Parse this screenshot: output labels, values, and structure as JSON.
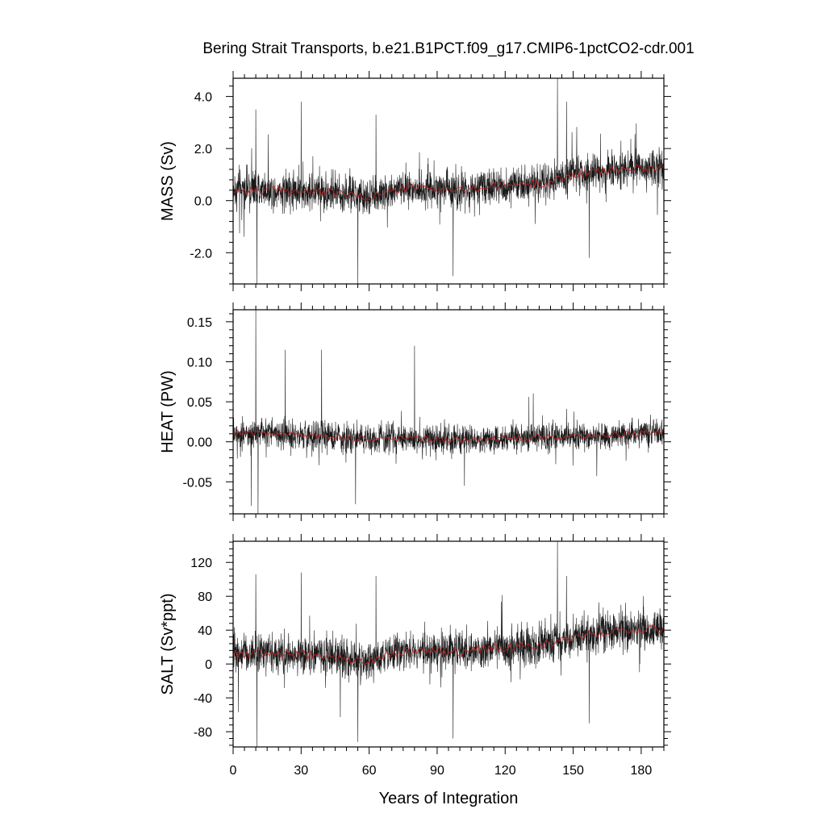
{
  "title": "Bering Strait Transports, b.e21.B1PCT.f09_g17.CMIP6-1pctCO2-cdr.001",
  "xlabel": "Years of Integration",
  "colors": {
    "monthly": "#000000",
    "annual_mean": "#cc2222",
    "axes": "#000000",
    "background": "#ffffff"
  },
  "chart_data": [
    {
      "type": "line",
      "ylabel": "MASS (Sv)",
      "xlim": [
        0,
        190
      ],
      "ylim": [
        -3.2,
        4.7
      ],
      "x_ticks": [
        0,
        30,
        60,
        90,
        120,
        150,
        180
      ],
      "y_ticks": [
        -2.0,
        0.0,
        2.0,
        4.0
      ],
      "y_tick_labels": [
        "-2.0",
        "0.0",
        "2.0",
        "4.0"
      ],
      "x_tick_labels_shown": false,
      "grid": false,
      "series": [
        {
          "style": "monthly",
          "trend": [
            [
              0,
              0.4
            ],
            [
              20,
              0.4
            ],
            [
              45,
              0.3
            ],
            [
              58,
              0.1
            ],
            [
              72,
              0.4
            ],
            [
              80,
              0.5
            ],
            [
              100,
              0.4
            ],
            [
              120,
              0.6
            ],
            [
              140,
              0.7
            ],
            [
              150,
              1.0
            ],
            [
              170,
              1.2
            ],
            [
              190,
              1.3
            ]
          ],
          "spread": 0.75
        },
        {
          "style": "annual_mean",
          "trend": [
            [
              0,
              0.4
            ],
            [
              20,
              0.4
            ],
            [
              45,
              0.3
            ],
            [
              58,
              0.1
            ],
            [
              72,
              0.4
            ],
            [
              80,
              0.5
            ],
            [
              100,
              0.4
            ],
            [
              120,
              0.6
            ],
            [
              140,
              0.7
            ],
            [
              150,
              1.0
            ],
            [
              170,
              1.2
            ],
            [
              190,
              1.3
            ]
          ]
        }
      ],
      "extremes": [
        [
          10,
          3.5
        ],
        [
          10.5,
          -3.2
        ],
        [
          30,
          3.8
        ],
        [
          63,
          3.3
        ],
        [
          55,
          -3.2
        ],
        [
          97,
          -2.9
        ],
        [
          143,
          4.7
        ],
        [
          147,
          3.8
        ],
        [
          157,
          -2.2
        ],
        [
          171,
          2.3
        ]
      ]
    },
    {
      "type": "line",
      "ylabel": "HEAT (PW)",
      "xlim": [
        0,
        190
      ],
      "ylim": [
        -0.09,
        0.165
      ],
      "x_ticks": [
        0,
        30,
        60,
        90,
        120,
        150,
        180
      ],
      "y_ticks": [
        -0.05,
        0.0,
        0.05,
        0.1,
        0.15
      ],
      "y_tick_labels": [
        "-0.05",
        "0.00",
        "0.05",
        "0.10",
        "0.15"
      ],
      "x_tick_labels_shown": false,
      "grid": false,
      "series": [
        {
          "style": "monthly",
          "trend": [
            [
              0,
              0.012
            ],
            [
              20,
              0.01
            ],
            [
              45,
              0.006
            ],
            [
              60,
              0.003
            ],
            [
              80,
              0.004
            ],
            [
              100,
              0.002
            ],
            [
              120,
              0.004
            ],
            [
              140,
              0.006
            ],
            [
              160,
              0.008
            ],
            [
              175,
              0.01
            ],
            [
              190,
              0.012
            ]
          ],
          "spread": 0.018
        },
        {
          "style": "annual_mean",
          "trend": [
            [
              0,
              0.012
            ],
            [
              20,
              0.01
            ],
            [
              45,
              0.006
            ],
            [
              60,
              0.003
            ],
            [
              80,
              0.004
            ],
            [
              100,
              0.002
            ],
            [
              120,
              0.004
            ],
            [
              140,
              0.006
            ],
            [
              160,
              0.008
            ],
            [
              175,
              0.01
            ],
            [
              190,
              0.012
            ]
          ]
        }
      ],
      "extremes": [
        [
          10,
          0.165
        ],
        [
          11,
          -0.09
        ],
        [
          23,
          0.115
        ],
        [
          39,
          0.115
        ],
        [
          80,
          0.12
        ],
        [
          54,
          -0.078
        ],
        [
          102,
          -0.055
        ],
        [
          8,
          -0.08
        ]
      ]
    },
    {
      "type": "line",
      "ylabel": "SALT (Sv*ppt)",
      "xlim": [
        0,
        190
      ],
      "ylim": [
        -98,
        145
      ],
      "x_ticks": [
        0,
        30,
        60,
        90,
        120,
        150,
        180
      ],
      "x_tick_labels": [
        "0",
        "30",
        "60",
        "90",
        "120",
        "150",
        "180"
      ],
      "y_ticks": [
        -80,
        -40,
        0,
        40,
        80,
        120
      ],
      "y_tick_labels": [
        "-80",
        "-40",
        "0",
        "40",
        "80",
        "120"
      ],
      "x_tick_labels_shown": true,
      "grid": false,
      "series": [
        {
          "style": "monthly",
          "trend": [
            [
              0,
              12
            ],
            [
              20,
              12
            ],
            [
              45,
              10
            ],
            [
              58,
              2
            ],
            [
              72,
              14
            ],
            [
              80,
              16
            ],
            [
              100,
              14
            ],
            [
              120,
              20
            ],
            [
              140,
              24
            ],
            [
              150,
              32
            ],
            [
              170,
              40
            ],
            [
              190,
              42
            ]
          ],
          "spread": 24
        },
        {
          "style": "annual_mean",
          "trend": [
            [
              0,
              12
            ],
            [
              20,
              12
            ],
            [
              45,
              10
            ],
            [
              58,
              2
            ],
            [
              72,
              14
            ],
            [
              80,
              16
            ],
            [
              100,
              14
            ],
            [
              120,
              20
            ],
            [
              140,
              24
            ],
            [
              150,
              32
            ],
            [
              170,
              40
            ],
            [
              190,
              42
            ]
          ]
        }
      ],
      "extremes": [
        [
          10,
          106
        ],
        [
          10.5,
          -98
        ],
        [
          30,
          108
        ],
        [
          63,
          104
        ],
        [
          55,
          -92
        ],
        [
          97,
          -88
        ],
        [
          143,
          145
        ],
        [
          147,
          104
        ],
        [
          157,
          -70
        ],
        [
          171,
          70
        ]
      ]
    }
  ]
}
